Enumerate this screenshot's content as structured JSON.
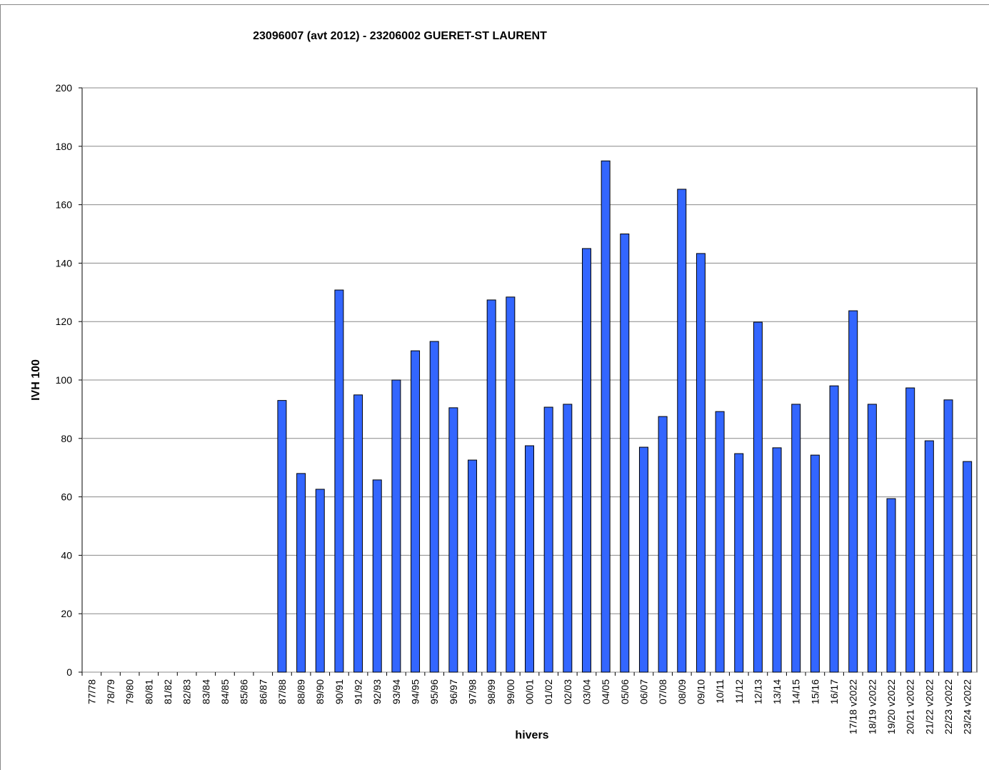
{
  "chart_data": {
    "type": "bar",
    "title": "23096007 (avt 2012) - 23206002 GUERET-ST LAURENT",
    "xlabel": "hivers",
    "ylabel": "IVH 100",
    "categories": [
      "77/78",
      "78/79",
      "79/80",
      "80/81",
      "81/82",
      "82/83",
      "83/84",
      "84/85",
      "85/86",
      "86/87",
      "87/88",
      "88/89",
      "89/90",
      "90/91",
      "91/92",
      "92/93",
      "93/94",
      "94/95",
      "95/96",
      "96/97",
      "97/98",
      "98/99",
      "99/00",
      "00/01",
      "01/02",
      "02/03",
      "03/04",
      "04/05",
      "05/06",
      "06/07",
      "07/08",
      "08/09",
      "09/10",
      "10/11",
      "11/12",
      "12/13",
      "13/14",
      "14/15",
      "15/16",
      "16/17",
      "17/18 v2022",
      "18/19 v2022",
      "19/20 v2022",
      "20/21 v2022",
      "21/22 v2022",
      "22/23 v2022",
      "23/24 v2022"
    ],
    "values": [
      null,
      null,
      null,
      null,
      null,
      null,
      null,
      null,
      null,
      null,
      93,
      68,
      62.6,
      130.8,
      94.9,
      65.8,
      100,
      110,
      113.2,
      90.5,
      72.6,
      127.4,
      128.4,
      77.5,
      90.7,
      91.7,
      145,
      175,
      150,
      77,
      87.5,
      165.3,
      143.3,
      89.2,
      74.8,
      119.8,
      76.8,
      91.7,
      74.3,
      98,
      123.7,
      91.7,
      59.4,
      97.3,
      79.2,
      93.2,
      72.1
    ],
    "color": "#3366ff",
    "ylim": [
      0,
      200
    ],
    "yticks": [
      0,
      20,
      40,
      60,
      80,
      100,
      120,
      140,
      160,
      180,
      200
    ],
    "grid": true
  }
}
